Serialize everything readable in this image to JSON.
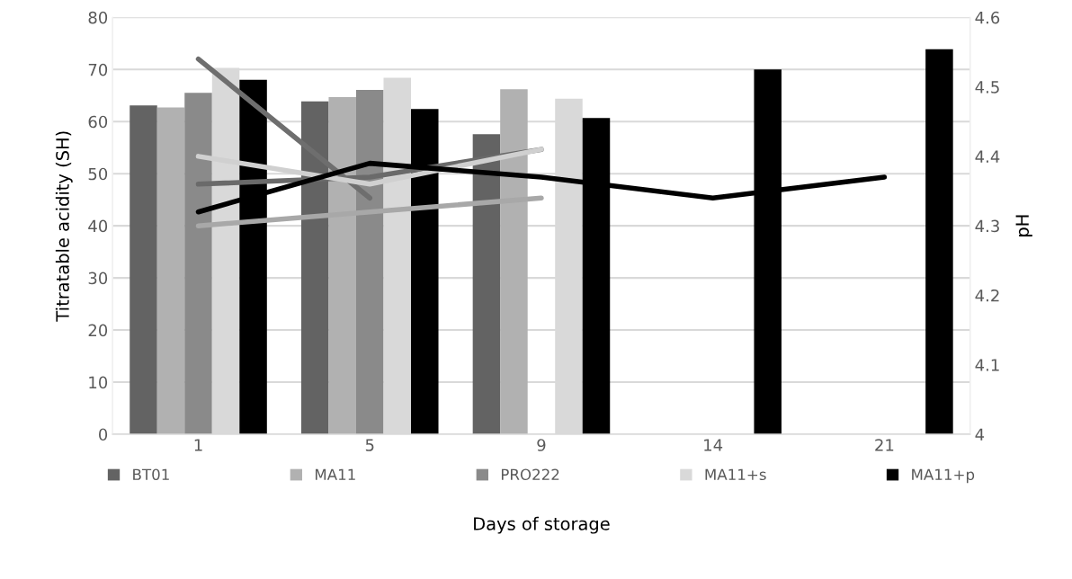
{
  "chart_data": {
    "type": "bar",
    "xlabel": "Days of storage",
    "ylabel": "Titratable acidity (SH)",
    "y2label": "pH",
    "categories": [
      "1",
      "5",
      "9",
      "14",
      "21"
    ],
    "series": [
      {
        "name": "BT01",
        "color": "#636363",
        "values": [
          63.1,
          63.9,
          57.6,
          null,
          null
        ]
      },
      {
        "name": "MA11",
        "color": "#b1b1b1",
        "values": [
          62.7,
          64.7,
          66.2,
          null,
          null
        ]
      },
      {
        "name": "PRO222",
        "color": "#8a8a8a",
        "values": [
          65.5,
          66.1,
          null,
          null,
          null
        ]
      },
      {
        "name": "MA11+s",
        "color": "#d9d9d9",
        "values": [
          70.3,
          68.4,
          64.4,
          null,
          null
        ]
      },
      {
        "name": "MA11+p",
        "color": "#000000",
        "values": [
          68.0,
          62.4,
          60.7,
          70.0,
          73.9
        ]
      },
      {
        "type": "line",
        "axis": "y2",
        "color": "#6a6a6a",
        "values": [
          4.36,
          4.37,
          4.41,
          null,
          null
        ]
      },
      {
        "type": "line",
        "axis": "y2",
        "color": "#a8a8a8",
        "values": [
          4.3,
          4.32,
          4.34,
          null,
          null
        ]
      },
      {
        "type": "line",
        "axis": "y2",
        "color": "#6e6e6e",
        "values": [
          4.54,
          4.34,
          null,
          null,
          null
        ]
      },
      {
        "type": "line",
        "axis": "y2",
        "color": "#d0d0d0",
        "values": [
          4.4,
          4.36,
          4.41,
          null,
          null
        ]
      },
      {
        "type": "line",
        "axis": "y2",
        "color": "#000000",
        "values": [
          4.32,
          4.39,
          4.37,
          4.34,
          4.37
        ]
      }
    ],
    "ylim": [
      0,
      80
    ],
    "yticks": [
      0,
      10,
      20,
      30,
      40,
      50,
      60,
      70,
      80
    ],
    "y2lim": [
      4,
      4.6
    ],
    "y2ticks": [
      4,
      4.1,
      4.2,
      4.3,
      4.4,
      4.5,
      4.6
    ],
    "grid": "y",
    "legend": "bottom",
    "marker": "none",
    "line_style": "solid"
  }
}
